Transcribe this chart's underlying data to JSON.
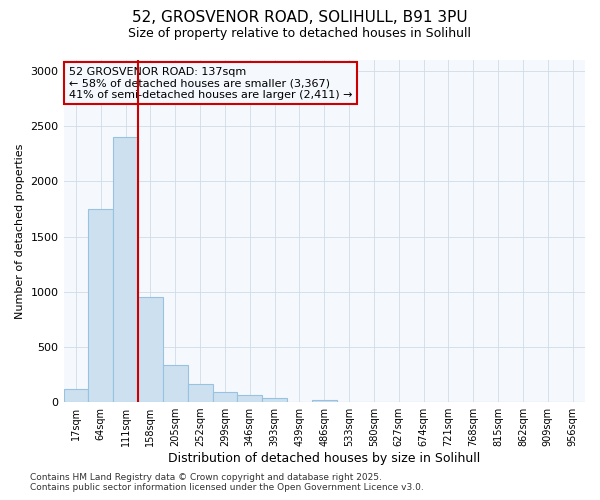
{
  "title_line1": "52, GROSVENOR ROAD, SOLIHULL, B91 3PU",
  "title_line2": "Size of property relative to detached houses in Solihull",
  "xlabel": "Distribution of detached houses by size in Solihull",
  "ylabel": "Number of detached properties",
  "annotation_title": "52 GROSVENOR ROAD: 137sqm",
  "annotation_line2": "← 58% of detached houses are smaller (3,367)",
  "annotation_line3": "41% of semi-detached houses are larger (2,411) →",
  "footer_line1": "Contains HM Land Registry data © Crown copyright and database right 2025.",
  "footer_line2": "Contains public sector information licensed under the Open Government Licence v3.0.",
  "bar_color": "#cce0f0",
  "bar_edge_color": "#99c2e0",
  "grid_color": "#d0dce8",
  "annotation_box_color": "#cc0000",
  "vline_color": "#cc0000",
  "background_color": "#ffffff",
  "plot_bg_color": "#f5f8fc",
  "categories": [
    "17sqm",
    "64sqm",
    "111sqm",
    "158sqm",
    "205sqm",
    "252sqm",
    "299sqm",
    "346sqm",
    "393sqm",
    "439sqm",
    "486sqm",
    "533sqm",
    "580sqm",
    "627sqm",
    "674sqm",
    "721sqm",
    "768sqm",
    "815sqm",
    "862sqm",
    "909sqm",
    "956sqm"
  ],
  "values": [
    115,
    1750,
    2400,
    950,
    335,
    160,
    90,
    60,
    35,
    0,
    20,
    5,
    0,
    0,
    0,
    0,
    0,
    0,
    0,
    0,
    0
  ],
  "vline_x": 2.5,
  "ylim": [
    0,
    3100
  ],
  "yticks": [
    0,
    500,
    1000,
    1500,
    2000,
    2500,
    3000
  ],
  "title_fontsize": 11,
  "subtitle_fontsize": 9,
  "xlabel_fontsize": 9,
  "ylabel_fontsize": 8,
  "tick_fontsize": 8,
  "xtick_fontsize": 7,
  "footer_fontsize": 6.5,
  "annotation_fontsize": 8
}
